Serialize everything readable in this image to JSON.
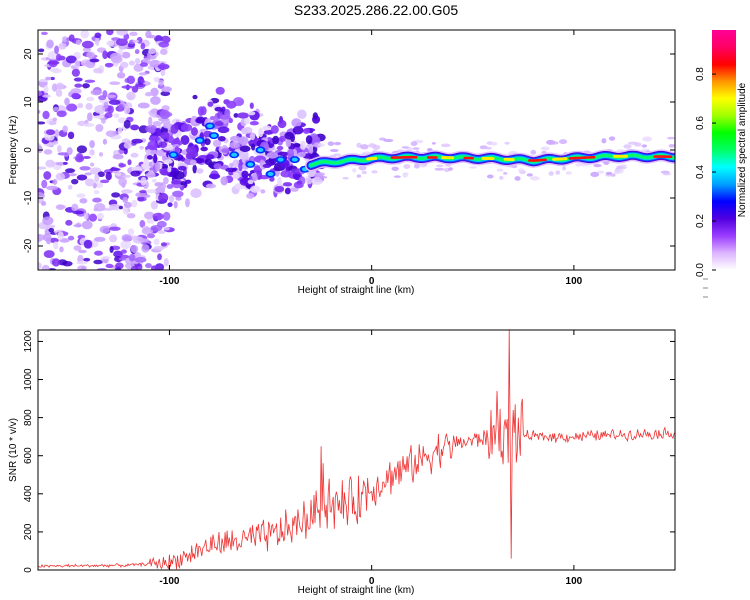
{
  "title": "S233.2025.286.22.00.G05",
  "chart_data": [
    {
      "type": "heatmap",
      "name": "spectrogram",
      "xlabel": "Height of straight line (km)",
      "ylabel": "Frequency (Hz)",
      "xlim": [
        -165,
        150
      ],
      "ylim": [
        -25,
        25
      ],
      "xticks": [
        "-100",
        "0",
        "100"
      ],
      "xtick_values": [
        -100,
        0,
        100
      ],
      "yticks": [
        "-20",
        "-10",
        "0",
        "10",
        "20"
      ],
      "ytick_values": [
        -20,
        -10,
        0,
        10,
        20
      ],
      "ridge": {
        "description_x": [
          -30,
          -20,
          -10,
          0,
          10,
          20,
          40,
          60,
          80,
          100,
          120,
          150
        ],
        "description_y": [
          -3,
          -2.5,
          -2.2,
          -1.8,
          -1.6,
          -1.5,
          -1.6,
          -1.8,
          -2.2,
          -1.7,
          -1.3,
          -1.4
        ]
      },
      "colorbar": {
        "label": "Normalized spectral amplitude",
        "range": [
          0,
          0.98
        ],
        "ticks": [
          "0.0",
          "0.2",
          "0.4",
          "0.6",
          "0.8"
        ],
        "tick_values": [
          0,
          0.2,
          0.4,
          0.6,
          0.8
        ],
        "colors": [
          "#ffffff",
          "#dcb4ff",
          "#9a3cff",
          "#5000e0",
          "#0000ff",
          "#00a0ff",
          "#00ffff",
          "#00ff64",
          "#00ff00",
          "#a0ff00",
          "#ffff00",
          "#ff9600",
          "#ff0000",
          "#ff0064",
          "#ff0096"
        ]
      }
    },
    {
      "type": "line",
      "name": "snr",
      "xlabel": "Height of straight line (km)",
      "ylabel": "SNR (10 * v/v)",
      "xlim": [
        -165,
        150
      ],
      "ylim": [
        0,
        1260
      ],
      "xticks": [
        "-100",
        "0",
        "100"
      ],
      "xtick_values": [
        -100,
        0,
        100
      ],
      "yticks": [
        "0",
        "200",
        "400",
        "600",
        "800",
        "1000",
        "1200"
      ],
      "ytick_values": [
        0,
        200,
        400,
        600,
        800,
        1000,
        1200
      ],
      "color": "#ee3333",
      "trend_x": [
        -165,
        -120,
        -100,
        -90,
        -80,
        -60,
        -50,
        -40,
        -30,
        -25,
        -20,
        -10,
        0,
        10,
        20,
        30,
        40,
        50,
        60,
        65,
        70,
        75,
        80,
        100,
        120,
        150
      ],
      "trend_y": [
        20,
        25,
        40,
        80,
        130,
        160,
        180,
        220,
        280,
        330,
        330,
        350,
        430,
        500,
        550,
        620,
        660,
        680,
        700,
        720,
        720,
        710,
        700,
        700,
        710,
        720
      ],
      "spikes": [
        {
          "x": -25,
          "y": 650
        },
        {
          "x": -24,
          "y": 560
        },
        {
          "x": -21,
          "y": 480
        },
        {
          "x": 62,
          "y": 940
        },
        {
          "x": 68,
          "y": 1270
        },
        {
          "x": 69,
          "y": 60
        },
        {
          "x": 71,
          "y": 870
        }
      ]
    }
  ]
}
